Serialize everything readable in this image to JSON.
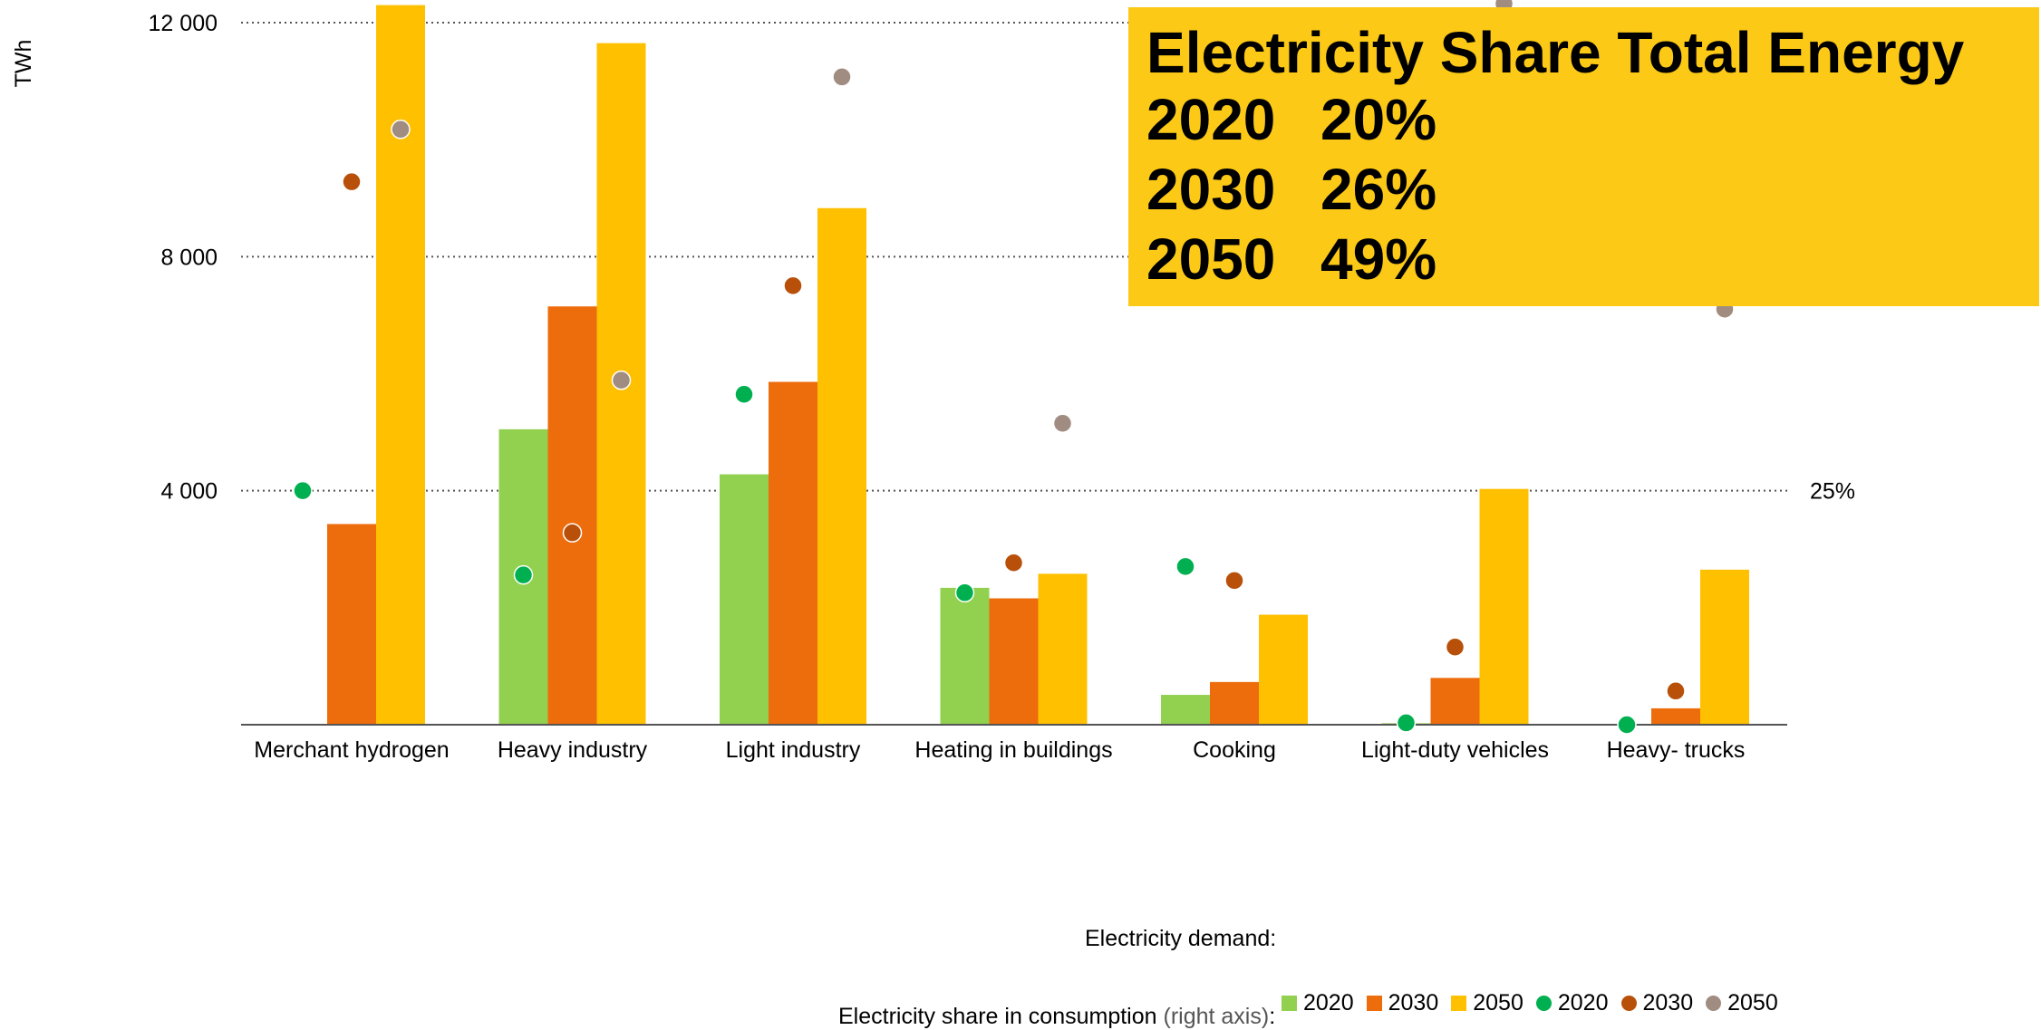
{
  "chart_data": {
    "type": "bar",
    "title": "",
    "ylabel": "TWh",
    "ylim": [
      0,
      12000
    ],
    "y_ticks": [
      "12 000",
      "8 000",
      "4 000"
    ],
    "y_tick_values": [
      12000,
      8000,
      4000
    ],
    "right_axis_tick": "25%",
    "right_axis_tick_value": 25,
    "right_axis_max": 75,
    "grid": "dotted horizontal",
    "categories": [
      "Merchant hydrogen",
      "Heavy industry",
      "Light industry",
      "Heating in buildings",
      "Cooking",
      "Light-duty vehicles",
      "Heavy- trucks"
    ],
    "series": [
      {
        "name": "2020",
        "kind": "bar",
        "color": "#92d050",
        "values": [
          10,
          5050,
          4280,
          2340,
          510,
          25,
          10
        ]
      },
      {
        "name": "2030",
        "kind": "bar",
        "color": "#ed6c0c",
        "values": [
          3430,
          7150,
          5860,
          2160,
          730,
          800,
          280
        ]
      },
      {
        "name": "2050",
        "kind": "bar",
        "color": "#ffc000",
        "values": [
          12300,
          11650,
          8830,
          2580,
          1880,
          4030,
          2650
        ]
      },
      {
        "name": "2020",
        "kind": "point",
        "axis": "right",
        "color": "#00b050",
        "values": [
          25,
          16,
          35.3,
          14.1,
          16.9,
          0.2,
          0
        ]
      },
      {
        "name": "2030",
        "kind": "point",
        "axis": "right",
        "color": "#b8500a",
        "values": [
          58,
          20.5,
          46.9,
          17.3,
          15.4,
          8.3,
          3.6
        ]
      },
      {
        "name": "2050",
        "kind": "point",
        "axis": "right",
        "color": "#a08c80",
        "values": [
          63.6,
          36.8,
          69.2,
          32.2,
          null,
          80.3,
          44.4
        ]
      }
    ]
  },
  "callout": {
    "title": "Electricity Share Total Energy",
    "rows": [
      {
        "year": "2020",
        "share": "20%"
      },
      {
        "year": "2030",
        "share": "26%"
      },
      {
        "year": "2050",
        "share": "49%"
      }
    ],
    "background": "#fcc917"
  },
  "legend": {
    "title_demand": "Electricity demand:",
    "title_share": "Electricity share in consumption",
    "title_share_note": "(right axis)",
    "title_share_suffix": ":",
    "items": [
      {
        "label": "2020",
        "shape": "square",
        "color": "#92d050"
      },
      {
        "label": "2030",
        "shape": "square",
        "color": "#ed6c0c"
      },
      {
        "label": "2050",
        "shape": "square",
        "color": "#ffc000"
      },
      {
        "label": "2020",
        "shape": "dot",
        "color": "#00b050"
      },
      {
        "label": "2030",
        "shape": "dot",
        "color": "#b8500a"
      },
      {
        "label": "2050",
        "shape": "dot",
        "color": "#a08c80"
      }
    ]
  }
}
